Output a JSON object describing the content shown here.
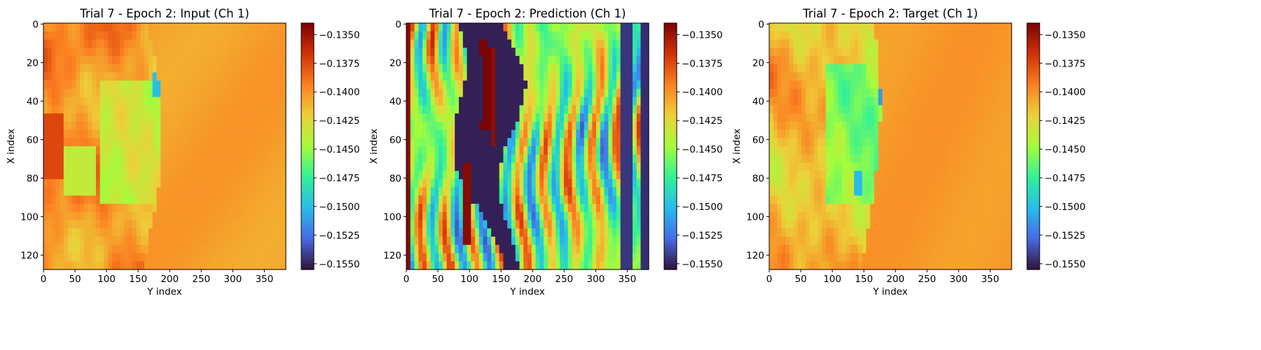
{
  "chart_data": [
    {
      "type": "heatmap",
      "panel": "input",
      "title": "Trial 7 - Epoch 2: Input (Ch 1)",
      "xlabel": "Y index",
      "ylabel": "X index",
      "x_range": [
        0,
        383
      ],
      "y_range": [
        0,
        127
      ],
      "y_inverted": true,
      "xticks": [
        0,
        50,
        100,
        150,
        200,
        250,
        300,
        350
      ],
      "yticks": [
        0,
        20,
        40,
        60,
        80,
        100,
        120
      ],
      "colormap": "turbo",
      "vmin": -0.1555,
      "vmax": -0.134,
      "colorbar_ticks": [
        "−0.1350",
        "−0.1375",
        "−0.1400",
        "−0.1425",
        "−0.1450",
        "−0.1475",
        "−0.1500",
        "−0.1525",
        "−0.1550"
      ],
      "colorbar_values": [
        -0.135,
        -0.1375,
        -0.14,
        -0.1425,
        -0.145,
        -0.1475,
        -0.15,
        -0.1525,
        -0.155
      ]
    },
    {
      "type": "heatmap",
      "panel": "prediction",
      "title": "Trial 7 - Epoch 2: Prediction (Ch 1)",
      "xlabel": "Y index",
      "ylabel": "X index",
      "x_range": [
        0,
        383
      ],
      "y_range": [
        0,
        127
      ],
      "y_inverted": true,
      "xticks": [
        0,
        50,
        100,
        150,
        200,
        250,
        300,
        350
      ],
      "yticks": [
        0,
        20,
        40,
        60,
        80,
        100,
        120
      ],
      "colormap": "turbo",
      "vmin": -0.1555,
      "vmax": -0.134,
      "colorbar_ticks": [
        "−0.1350",
        "−0.1375",
        "−0.1400",
        "−0.1425",
        "−0.1450",
        "−0.1475",
        "−0.1500",
        "−0.1525",
        "−0.1550"
      ],
      "colorbar_values": [
        -0.135,
        -0.1375,
        -0.14,
        -0.1425,
        -0.145,
        -0.1475,
        -0.15,
        -0.1525,
        -0.155
      ]
    },
    {
      "type": "heatmap",
      "panel": "target",
      "title": "Trial 7 - Epoch 2: Target (Ch 1)",
      "xlabel": "Y index",
      "ylabel": "X index",
      "x_range": [
        0,
        383
      ],
      "y_range": [
        0,
        127
      ],
      "y_inverted": true,
      "xticks": [
        0,
        50,
        100,
        150,
        200,
        250,
        300,
        350
      ],
      "yticks": [
        0,
        20,
        40,
        60,
        80,
        100,
        120
      ],
      "colormap": "turbo",
      "vmin": -0.1555,
      "vmax": -0.134,
      "colorbar_ticks": [
        "−0.1350",
        "−0.1375",
        "−0.1400",
        "−0.1425",
        "−0.1450",
        "−0.1475",
        "−0.1500",
        "−0.1525",
        "−0.1550"
      ],
      "colorbar_values": [
        -0.135,
        -0.1375,
        -0.14,
        -0.1425,
        -0.145,
        -0.1475,
        -0.15,
        -0.1525,
        -0.155
      ]
    }
  ]
}
